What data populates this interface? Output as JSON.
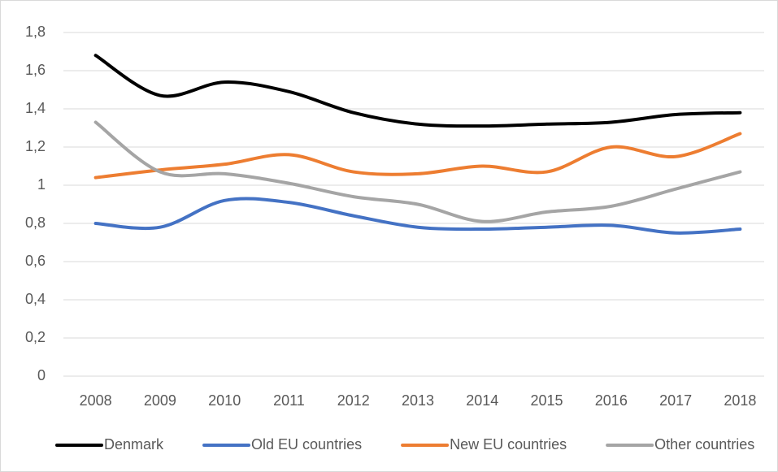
{
  "chart_data": {
    "type": "line",
    "categories": [
      "2008",
      "2009",
      "2010",
      "2011",
      "2012",
      "2013",
      "2014",
      "2015",
      "2016",
      "2017",
      "2018"
    ],
    "series": [
      {
        "name": "Denmark",
        "color": "#000000",
        "values": [
          1.68,
          1.47,
          1.54,
          1.49,
          1.38,
          1.32,
          1.31,
          1.32,
          1.33,
          1.37,
          1.38
        ]
      },
      {
        "name": "Old EU countries",
        "color": "#4472c4",
        "values": [
          0.8,
          0.78,
          0.92,
          0.91,
          0.84,
          0.78,
          0.77,
          0.78,
          0.79,
          0.75,
          0.77
        ]
      },
      {
        "name": "New EU countries",
        "color": "#ed7d31",
        "values": [
          1.04,
          1.08,
          1.11,
          1.16,
          1.07,
          1.06,
          1.1,
          1.07,
          1.2,
          1.15,
          1.27
        ]
      },
      {
        "name": "Other countries",
        "color": "#a5a5a5",
        "values": [
          1.33,
          1.07,
          1.06,
          1.01,
          0.94,
          0.9,
          0.81,
          0.86,
          0.89,
          0.98,
          1.07
        ]
      }
    ],
    "ylim": [
      0,
      1.8
    ],
    "yticks": [
      0,
      {
        "value": 0.2,
        "label": "0,2"
      },
      {
        "value": 0.4,
        "label": "0,4"
      },
      {
        "value": 0.6,
        "label": "0,6"
      },
      {
        "value": 0.8,
        "label": "0,8"
      },
      1,
      {
        "value": 1.2,
        "label": "1,2"
      },
      {
        "value": 1.4,
        "label": "1,4"
      },
      {
        "value": 1.6,
        "label": "1,6"
      },
      {
        "value": 1.8,
        "label": "1,8"
      }
    ],
    "grid": true,
    "legend": "bottom"
  }
}
